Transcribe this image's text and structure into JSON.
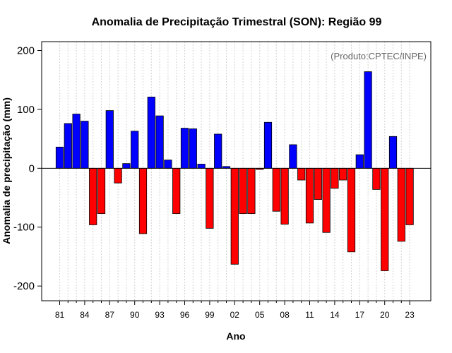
{
  "chart_data": {
    "type": "bar",
    "title": "Anomalia de Precipitação Trimestral (SON): Região 99",
    "xlabel": "Ano",
    "ylabel": "Anomalia de precipitação (mm)",
    "annotation": "(Produto:CPTEC/INPE)",
    "ylim": [
      -225,
      215
    ],
    "yticks": [
      -200,
      -100,
      0,
      100,
      200
    ],
    "grid": true,
    "x": [
      1981,
      1982,
      1983,
      1984,
      1985,
      1986,
      1987,
      1988,
      1989,
      1990,
      1991,
      1992,
      1993,
      1994,
      1995,
      1996,
      1997,
      1998,
      1999,
      2000,
      2001,
      2002,
      2003,
      2004,
      2005,
      2006,
      2007,
      2008,
      2009,
      2010,
      2011,
      2012,
      2013,
      2014,
      2015,
      2016,
      2017,
      2018,
      2019,
      2020,
      2021,
      2022,
      2023
    ],
    "xtick_labels": [
      "81",
      "84",
      "87",
      "90",
      "93",
      "96",
      "99",
      "02",
      "05",
      "08",
      "11",
      "14",
      "17",
      "20",
      "23"
    ],
    "values": [
      36,
      76,
      92,
      80,
      -96,
      -77,
      98,
      -25,
      8,
      63,
      -111,
      121,
      89,
      14,
      -77,
      68,
      67,
      7,
      -102,
      58,
      3,
      -163,
      -77,
      -77,
      -2,
      78,
      -73,
      -95,
      40,
      -20,
      -93,
      -53,
      -109,
      -34,
      -20,
      -142,
      23,
      164,
      -36,
      -174,
      54,
      -124,
      -96
    ],
    "colors": {
      "positive": "#0000ff",
      "negative": "#ff0000",
      "grid": "#d3d3d3",
      "bar_stroke": "#000000"
    }
  }
}
